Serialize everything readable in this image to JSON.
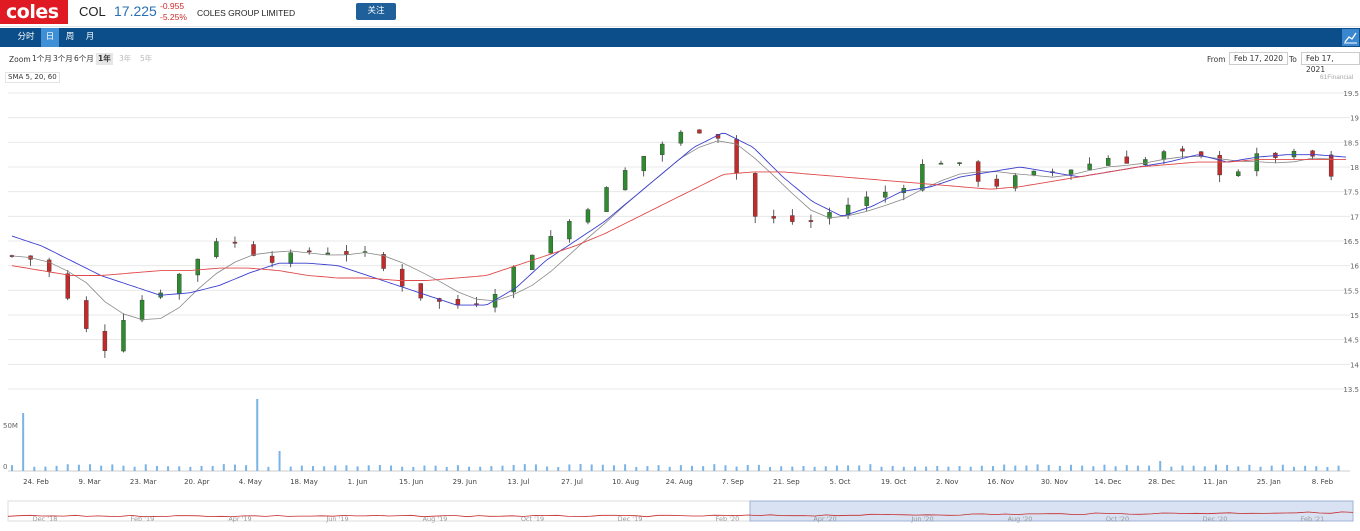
{
  "header": {
    "logo": "coles",
    "symbol": "COL",
    "price": "17.225",
    "change": "-0.955",
    "change_pct": "-5.25%",
    "company": "COLES GROUP LIMITED",
    "follow_label": "关注"
  },
  "period_tabs": [
    {
      "label": "分时",
      "active": false
    },
    {
      "label": "日",
      "active": true
    },
    {
      "label": "周",
      "active": false
    },
    {
      "label": "月",
      "active": false
    }
  ],
  "zoom": {
    "label": "Zoom",
    "options": [
      {
        "label": "1个月",
        "state": "normal"
      },
      {
        "label": "3个月",
        "state": "normal"
      },
      {
        "label": "6个月",
        "state": "normal"
      },
      {
        "label": "1年",
        "state": "active"
      },
      {
        "label": "3年",
        "state": "disabled"
      },
      {
        "label": "5年",
        "state": "disabled"
      }
    ],
    "from_label": "From",
    "from_value": "Feb 17, 2020",
    "to_label": "To",
    "to_value": "Feb 17, 2021"
  },
  "legend": "SMA 5, 20, 60",
  "credit": "61Financial",
  "colors": {
    "up": "#2e8b2e",
    "down": "#c42a2a",
    "sma5": "#888888",
    "sma20": "#3b3fcf",
    "sma60": "#e04a4a",
    "volume": "#7ab3e6",
    "brand": "#e01a22",
    "bar": "#0b4e8a"
  },
  "chart_data": {
    "type": "candlestick",
    "price_ticks": [
      "19.5",
      "19",
      "18.5",
      "18",
      "17.5",
      "17",
      "16.5",
      "16",
      "15.5",
      "15",
      "14.5",
      "14",
      "13.5"
    ],
    "ylim": [
      13.5,
      19.5
    ],
    "volume_ticks": [
      "50M",
      "0"
    ],
    "x_ticks": [
      "24. Feb",
      "9. Mar",
      "23. Mar",
      "20. Apr",
      "4. May",
      "18. May",
      "1. Jun",
      "15. Jun",
      "29. Jun",
      "13. Jul",
      "27. Jul",
      "10. Aug",
      "24. Aug",
      "7. Sep",
      "21. Sep",
      "5. Oct",
      "19. Oct",
      "2. Nov",
      "16. Nov",
      "30. Nov",
      "14. Dec",
      "28. Dec",
      "11. Jan",
      "25. Jan",
      "8. Feb"
    ],
    "navigator_ticks": [
      "Dec '18",
      "Feb '19",
      "Apr '19",
      "Jun '19",
      "Aug '19",
      "Oct '19",
      "Dec '19",
      "Feb '20",
      "Apr '20",
      "Jun '20",
      "Aug '20",
      "Oct '20",
      "Dec '20",
      "Feb '21"
    ],
    "close_anchors": [
      16.2,
      16.1,
      15.2,
      14.2,
      15.2,
      15.5,
      16.0,
      16.6,
      16.3,
      16.1,
      16.3,
      16.3,
      16.2,
      15.7,
      15.3,
      15.2,
      15.3,
      16.0,
      16.5,
      17.0,
      17.5,
      18.1,
      18.5,
      18.8,
      18.6,
      17.0,
      16.9,
      16.9,
      17.2,
      17.4,
      17.6,
      18.2,
      18.0,
      17.6,
      17.8,
      17.9,
      18.0,
      18.2,
      18.1,
      18.3,
      18.2,
      17.8,
      18.2,
      18.25,
      18.2,
      17.3
    ],
    "sma20_anchors": [
      16.6,
      16.4,
      16.1,
      15.8,
      15.6,
      15.4,
      15.45,
      15.6,
      15.85,
      16.05,
      16.05,
      16.0,
      15.8,
      15.6,
      15.4,
      15.2,
      15.2,
      15.55,
      16.1,
      16.5,
      16.9,
      17.4,
      17.9,
      18.4,
      18.7,
      18.4,
      17.8,
      17.3,
      17.0,
      17.2,
      17.5,
      17.6,
      17.8,
      17.9,
      18.0,
      17.9,
      17.8,
      17.9,
      18.0,
      18.1,
      18.25,
      18.1,
      18.2,
      18.25,
      18.25,
      18.2
    ],
    "sma60_anchors": [
      16.0,
      15.9,
      15.8,
      15.8,
      15.85,
      15.9,
      15.9,
      15.95,
      15.95,
      15.9,
      15.8,
      15.75,
      15.75,
      15.7,
      15.7,
      15.75,
      15.8,
      16.0,
      16.2,
      16.4,
      16.65,
      16.95,
      17.25,
      17.55,
      17.85,
      17.9,
      17.9,
      17.85,
      17.8,
      17.75,
      17.7,
      17.65,
      17.6,
      17.55,
      17.6,
      17.7,
      17.8,
      17.9,
      18.0,
      18.05,
      18.1,
      18.1,
      18.15,
      18.15,
      18.15,
      18.15
    ],
    "volume_spikes": [
      {
        "day": 2,
        "value": 58
      },
      {
        "day": 66,
        "value": 72
      },
      {
        "day": 71,
        "value": 20
      },
      {
        "day": 309,
        "value": 10
      }
    ],
    "volume_base": 4
  }
}
